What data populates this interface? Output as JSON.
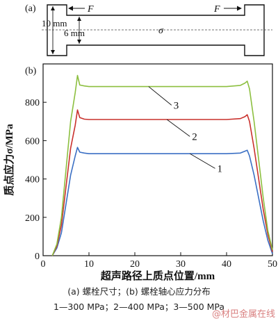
{
  "panel_a": {
    "label": "(a)",
    "dim_outer": "10 mm",
    "dim_inner": "6 mm",
    "force_left": "F",
    "force_right": "F",
    "stress_symbol": "σ"
  },
  "chart_data": {
    "type": "line",
    "panel_label": "(b)",
    "xlabel": "超声路径上质点位置/mm",
    "ylabel": "质点应力σ/MPa",
    "xlim": [
      0,
      50
    ],
    "ylim": [
      0,
      1000
    ],
    "xticks": [
      0,
      10,
      20,
      30,
      40,
      50
    ],
    "yticks": [
      0,
      200,
      400,
      600,
      800
    ],
    "grid": false,
    "series": [
      {
        "name": "1",
        "color": "#3a6fc4",
        "x": [
          2,
          3,
          4,
          5,
          6,
          7,
          7.5,
          8,
          9,
          10,
          15,
          20,
          25,
          30,
          35,
          40,
          43,
          44,
          44.5,
          45,
          46,
          47,
          48,
          49,
          50
        ],
        "y": [
          0,
          40,
          120,
          270,
          420,
          520,
          565,
          540,
          535,
          532,
          532,
          532,
          532,
          532,
          532,
          532,
          535,
          545,
          550,
          520,
          420,
          300,
          180,
          80,
          10
        ]
      },
      {
        "name": "2",
        "color": "#c9302c",
        "x": [
          2,
          3,
          4,
          5,
          6,
          7,
          7.5,
          8,
          9,
          10,
          15,
          20,
          25,
          30,
          35,
          40,
          43,
          44,
          44.5,
          45,
          46,
          47,
          48,
          49,
          50
        ],
        "y": [
          0,
          50,
          160,
          360,
          560,
          680,
          760,
          720,
          712,
          710,
          710,
          710,
          710,
          710,
          710,
          710,
          715,
          725,
          735,
          700,
          560,
          400,
          240,
          110,
          20
        ]
      },
      {
        "name": "3",
        "color": "#8cbf3f",
        "x": [
          2,
          3,
          4,
          5,
          6,
          7,
          7.5,
          8,
          9,
          10,
          15,
          20,
          25,
          30,
          35,
          40,
          43,
          44,
          44.5,
          45,
          46,
          47,
          48,
          49,
          50
        ],
        "y": [
          0,
          60,
          200,
          450,
          700,
          850,
          940,
          890,
          885,
          882,
          882,
          882,
          882,
          882,
          882,
          882,
          888,
          900,
          910,
          870,
          700,
          500,
          300,
          130,
          30
        ]
      }
    ],
    "annotations": [
      "1",
      "2",
      "3"
    ]
  },
  "caption": {
    "line1": "(a) 螺栓尺寸；(b) 螺栓轴心应力分布",
    "line2": "1—300 MPa；2—400 MPa；3—500 MPa"
  },
  "watermark": "@材巴金属在线"
}
